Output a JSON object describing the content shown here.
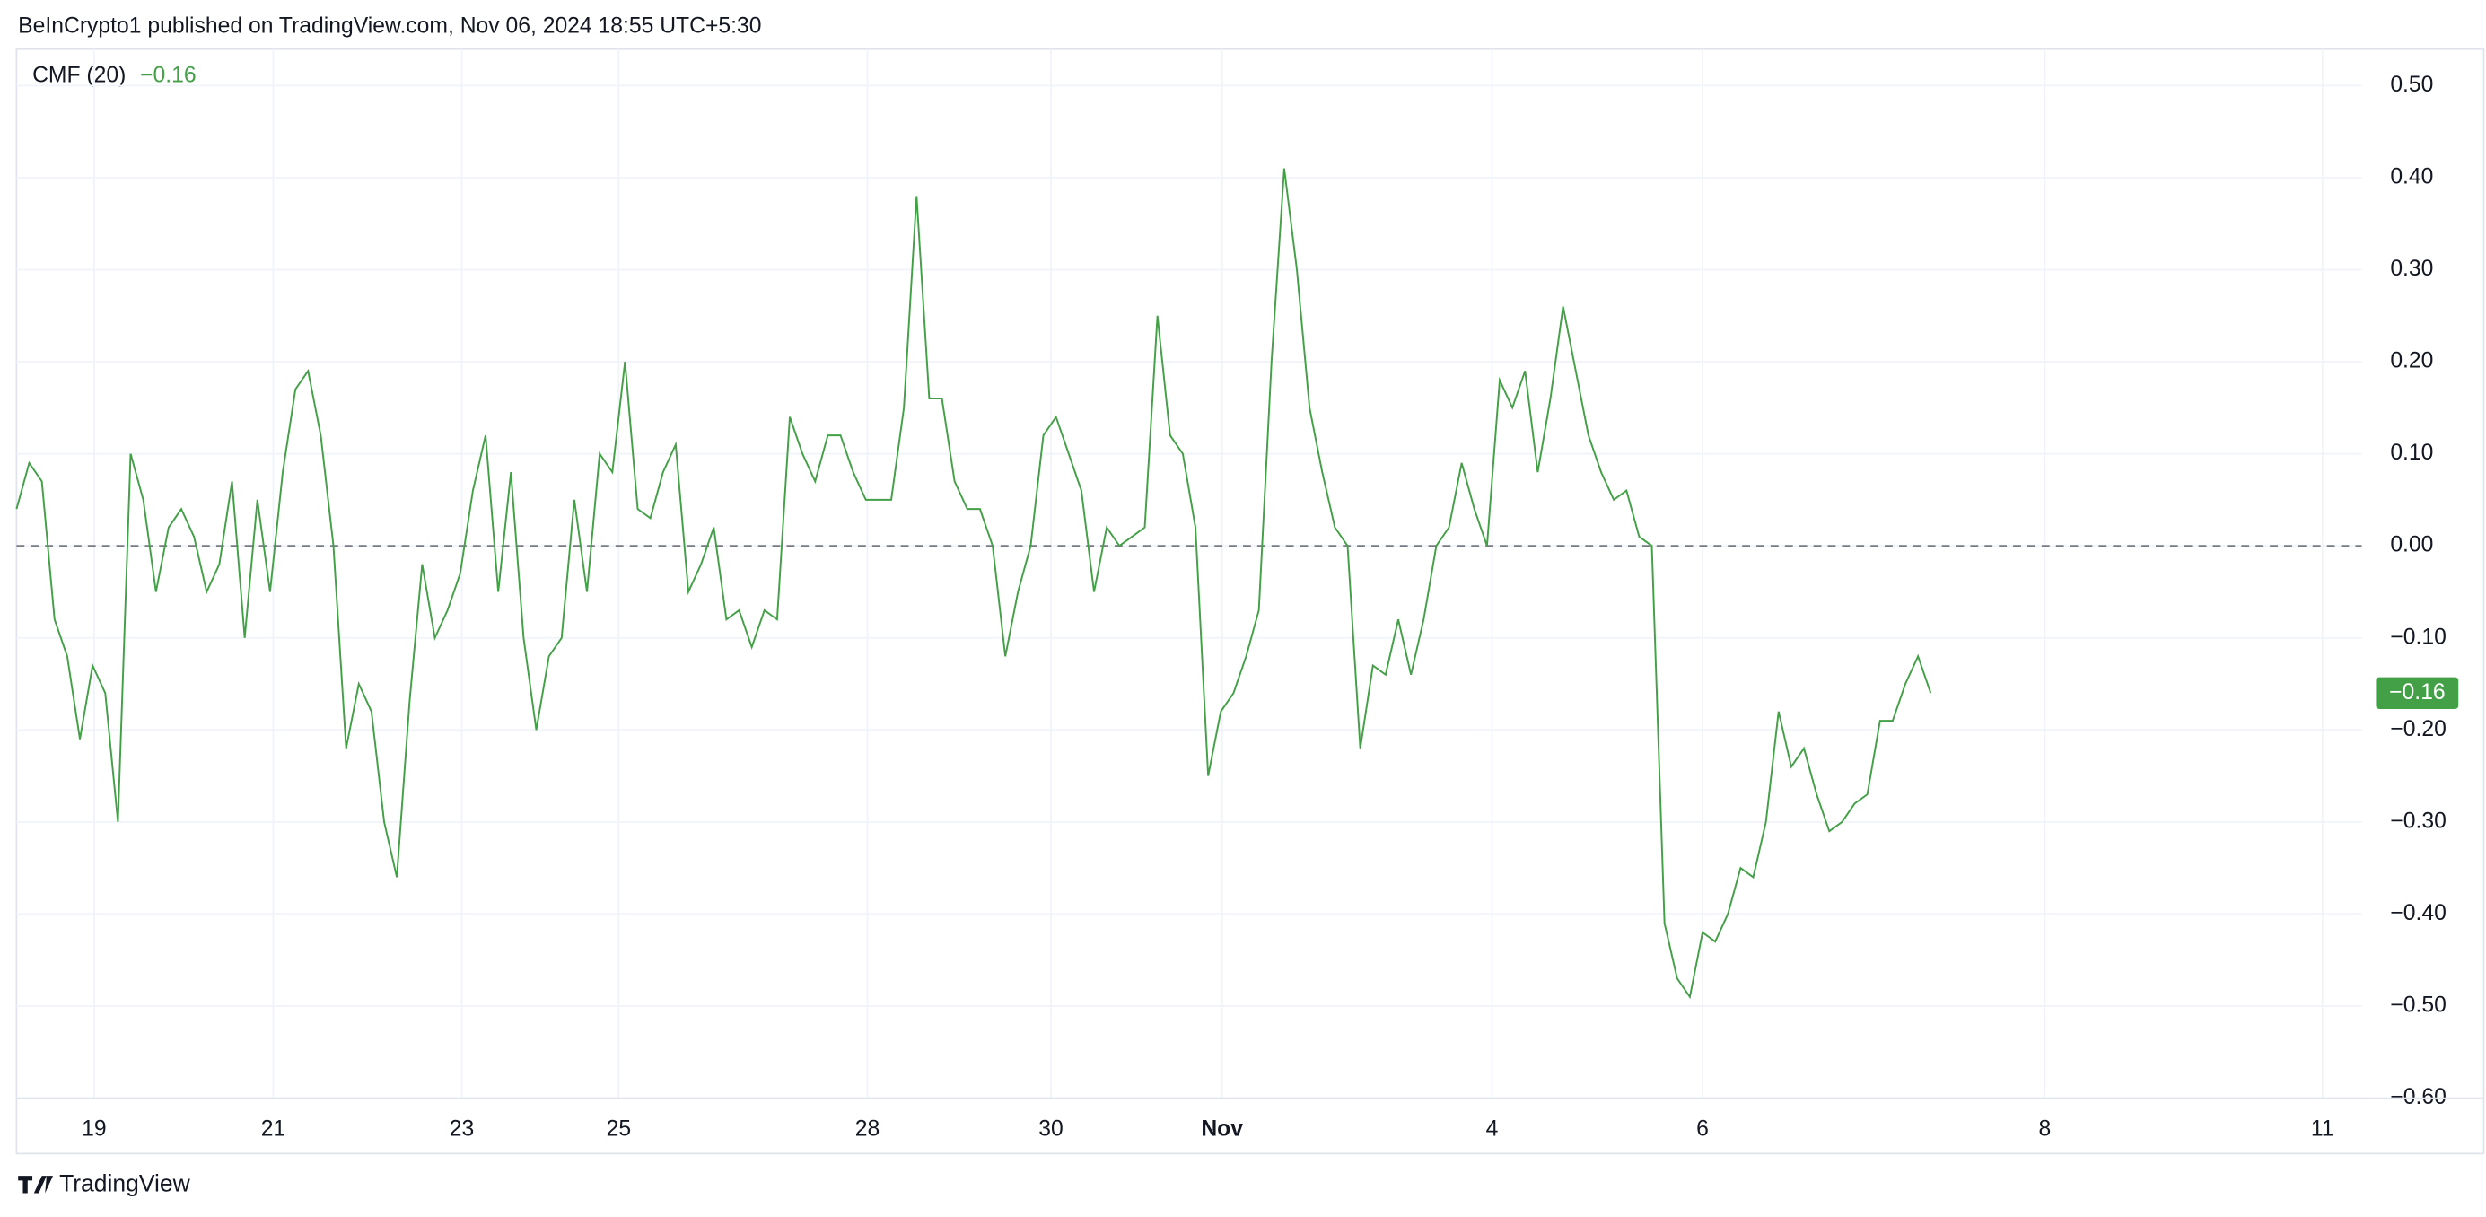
{
  "header": "BeInCrypto1 published on TradingView.com, Nov 06, 2024 18:55 UTC+5:30",
  "footer": "TradingView",
  "chart_data": {
    "type": "line",
    "title": "CMF (20)",
    "color": "#43a047",
    "grid": true,
    "hline": 0,
    "last_value": -0.16,
    "last_value_label": "−0.16",
    "xlim": [
      0,
      185
    ],
    "xticks": [
      {
        "value": 6.125,
        "label": "19"
      },
      {
        "value": 20.25,
        "label": "21"
      },
      {
        "value": 35.125,
        "label": "23"
      },
      {
        "value": 47.5,
        "label": "25"
      },
      {
        "value": 67.125,
        "label": "28"
      },
      {
        "value": 81.6,
        "label": "30"
      },
      {
        "value": 95.1,
        "label": "Nov"
      },
      {
        "value": 116.4,
        "label": "4"
      },
      {
        "value": 133,
        "label": "6"
      },
      {
        "value": 160,
        "label": "8"
      },
      {
        "value": 181.9,
        "label": "11"
      }
    ],
    "ylim": [
      -0.6,
      0.5
    ],
    "yticks": [
      {
        "value": 0.5,
        "label": "0.50"
      },
      {
        "value": 0.4,
        "label": "0.40"
      },
      {
        "value": 0.3,
        "label": "0.30"
      },
      {
        "value": 0.2,
        "label": "0.20"
      },
      {
        "value": 0.1,
        "label": "0.10"
      },
      {
        "value": 0,
        "label": "0.00"
      },
      {
        "value": -0.1,
        "label": "−0.10"
      },
      {
        "value": -0.2,
        "label": "−0.20"
      },
      {
        "value": -0.3,
        "label": "−0.30"
      },
      {
        "value": -0.4,
        "label": "−0.40"
      },
      {
        "value": -0.5,
        "label": "−0.50"
      },
      {
        "value": -0.6,
        "label": "−0.60"
      }
    ],
    "values": [
      0.04,
      0.09,
      0.07,
      -0.08,
      -0.12,
      -0.21,
      -0.13,
      -0.16,
      -0.3,
      0.1,
      0.05,
      -0.05,
      0.02,
      0.04,
      0.01,
      -0.05,
      -0.02,
      0.07,
      -0.1,
      0.05,
      -0.05,
      0.08,
      0.17,
      0.19,
      0.12,
      0.0,
      -0.22,
      -0.15,
      -0.18,
      -0.3,
      -0.36,
      -0.17,
      -0.02,
      -0.1,
      -0.07,
      -0.03,
      0.06,
      0.12,
      -0.05,
      0.08,
      -0.1,
      -0.2,
      -0.12,
      -0.1,
      0.05,
      -0.05,
      0.1,
      0.08,
      0.2,
      0.04,
      0.03,
      0.08,
      0.11,
      -0.05,
      -0.02,
      0.02,
      -0.08,
      -0.07,
      -0.11,
      -0.07,
      -0.08,
      0.14,
      0.1,
      0.07,
      0.12,
      0.12,
      0.08,
      0.05,
      0.05,
      0.05,
      0.15,
      0.38,
      0.16,
      0.16,
      0.07,
      0.04,
      0.04,
      0.0,
      -0.12,
      -0.05,
      0.0,
      0.12,
      0.14,
      0.1,
      0.06,
      -0.05,
      0.02,
      0.0,
      0.01,
      0.02,
      0.25,
      0.12,
      0.1,
      0.02,
      -0.25,
      -0.18,
      -0.16,
      -0.12,
      -0.07,
      0.2,
      0.41,
      0.3,
      0.15,
      0.08,
      0.02,
      0.0,
      -0.22,
      -0.13,
      -0.14,
      -0.08,
      -0.14,
      -0.08,
      0.0,
      0.02,
      0.09,
      0.04,
      0.0,
      0.18,
      0.15,
      0.19,
      0.08,
      0.16,
      0.26,
      0.19,
      0.12,
      0.08,
      0.05,
      0.06,
      0.01,
      0.0,
      -0.41,
      -0.47,
      -0.49,
      -0.42,
      -0.43,
      -0.4,
      -0.35,
      -0.36,
      -0.3,
      -0.18,
      -0.24,
      -0.22,
      -0.27,
      -0.31,
      -0.3,
      -0.28,
      -0.27,
      -0.19,
      -0.19,
      -0.15,
      -0.12,
      -0.16
    ]
  }
}
